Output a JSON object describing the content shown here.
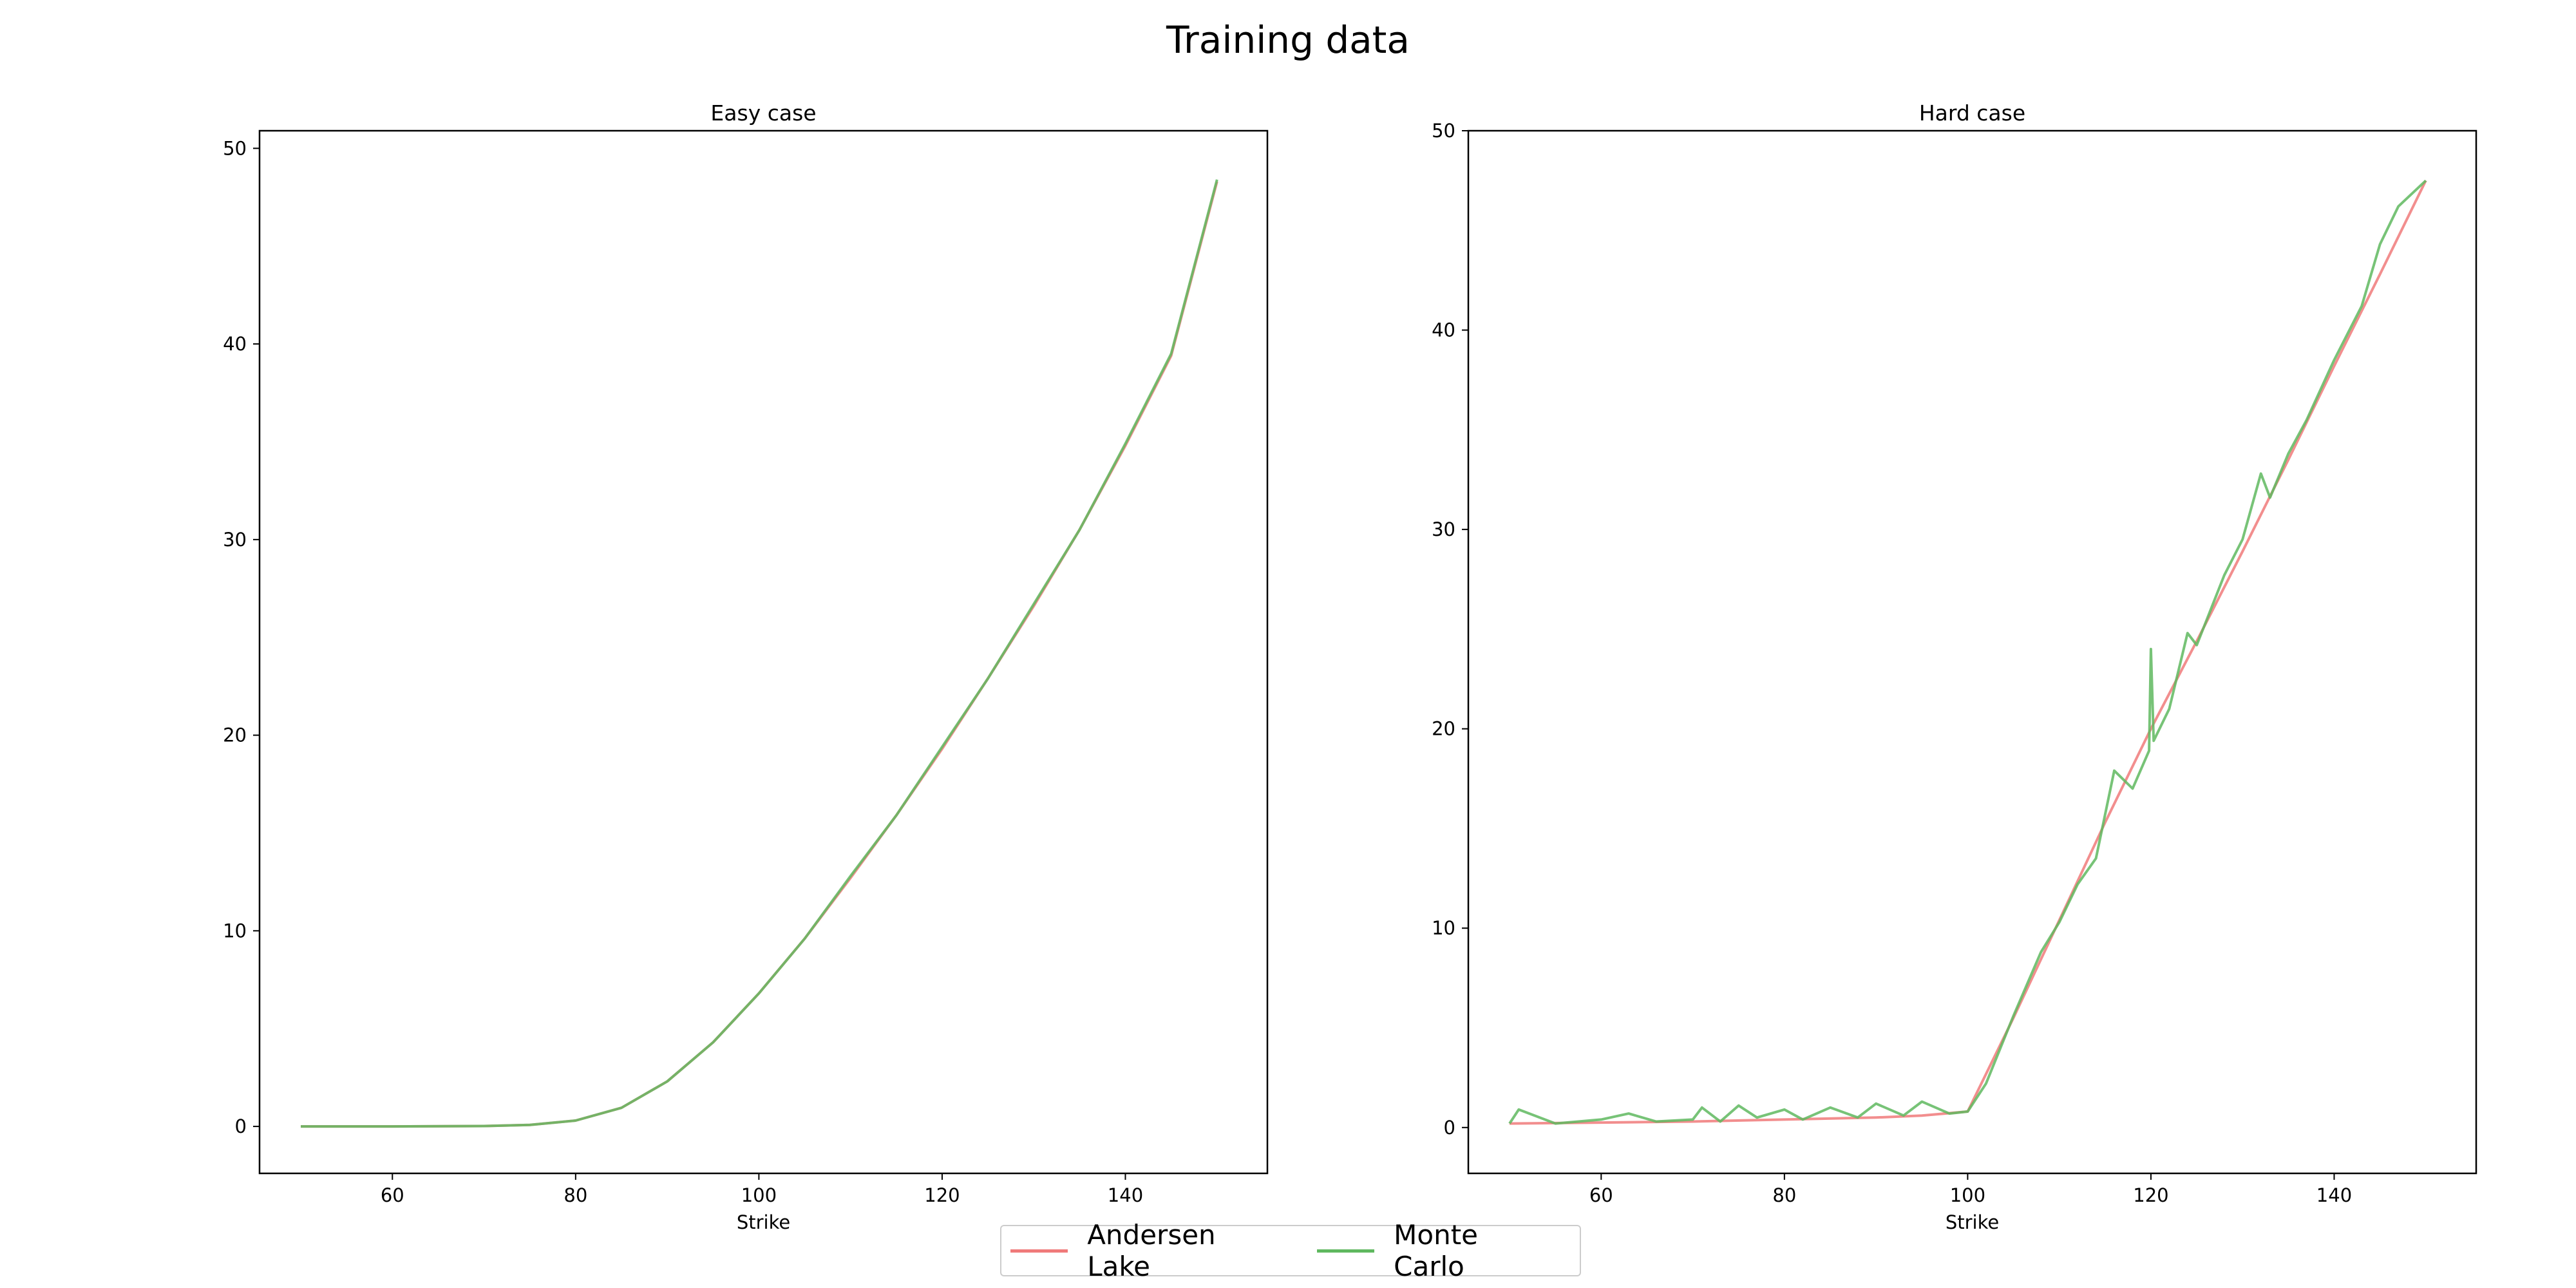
{
  "figure": {
    "title": "Training data"
  },
  "legend": {
    "items": [
      {
        "label": "Andersen Lake",
        "color": "#f07a7a"
      },
      {
        "label": "Monte Carlo",
        "color": "#5fb85f"
      }
    ]
  },
  "chart_data": [
    {
      "type": "line",
      "title": "Easy case",
      "xlabel": "Strike",
      "ylabel": "",
      "xlim": [
        45.5,
        155.5
      ],
      "ylim": [
        -2.4,
        50.9
      ],
      "xticks": [
        60,
        80,
        100,
        120,
        140
      ],
      "yticks": [
        0,
        10,
        20,
        30,
        40,
        50
      ],
      "grid": false,
      "legend_position": "bottom-center",
      "series": [
        {
          "name": "Andersen Lake",
          "color": "#f07a7a",
          "x": [
            50,
            60,
            70,
            75,
            80,
            85,
            90,
            95,
            100,
            105,
            110,
            115,
            120,
            125,
            130,
            135,
            140,
            145,
            150
          ],
          "values": [
            0,
            0,
            0.02,
            0.08,
            0.3,
            0.95,
            2.3,
            4.3,
            6.8,
            9.6,
            12.7,
            15.9,
            19.3,
            22.9,
            26.6,
            30.5,
            34.8,
            39.4,
            48.3
          ]
        },
        {
          "name": "Monte Carlo",
          "color": "#5fb85f",
          "x": [
            50,
            60,
            70,
            75,
            80,
            85,
            90,
            95,
            100,
            105,
            110,
            115,
            120,
            125,
            130,
            135,
            140,
            145,
            150
          ],
          "values": [
            0,
            0,
            0.02,
            0.08,
            0.3,
            0.95,
            2.3,
            4.3,
            6.8,
            9.6,
            12.8,
            15.9,
            19.4,
            22.9,
            26.7,
            30.5,
            34.9,
            39.5,
            48.4
          ]
        }
      ]
    },
    {
      "type": "line",
      "title": "Hard case",
      "xlabel": "Strike",
      "ylabel": "",
      "xlim": [
        45.5,
        155.5
      ],
      "ylim": [
        -2.3,
        50
      ],
      "xticks": [
        60,
        80,
        100,
        120,
        140
      ],
      "yticks": [
        0,
        10,
        20,
        30,
        40,
        50
      ],
      "grid": false,
      "legend_position": "bottom-center",
      "series": [
        {
          "name": "Andersen Lake",
          "color": "#f07a7a",
          "x": [
            50,
            60,
            70,
            80,
            90,
            95,
            100,
            105,
            110,
            115,
            120,
            125,
            130,
            135,
            140,
            145,
            150
          ],
          "values": [
            0.2,
            0.25,
            0.3,
            0.4,
            0.5,
            0.6,
            0.8,
            5.5,
            10.4,
            15.3,
            20.0,
            24.4,
            28.9,
            33.5,
            38.2,
            42.8,
            47.5
          ]
        },
        {
          "name": "Monte Carlo",
          "color": "#5fb85f",
          "x": [
            50,
            51,
            55,
            60,
            63,
            66,
            70,
            71,
            73,
            75,
            77,
            80,
            82,
            85,
            88,
            90,
            93,
            95,
            98,
            100,
            102,
            105,
            108,
            110,
            112,
            114,
            116,
            118,
            119.8,
            120,
            120.3,
            122,
            124,
            125,
            128,
            130,
            132,
            133,
            135,
            137,
            140,
            143,
            145,
            147,
            150
          ],
          "values": [
            0.2,
            0.9,
            0.2,
            0.4,
            0.7,
            0.3,
            0.4,
            1.0,
            0.3,
            1.1,
            0.5,
            0.9,
            0.4,
            1.0,
            0.5,
            1.2,
            0.6,
            1.3,
            0.7,
            0.8,
            2.2,
            5.6,
            8.8,
            10.3,
            12.2,
            13.5,
            17.9,
            17.0,
            18.9,
            24.0,
            19.4,
            21.0,
            24.8,
            24.2,
            27.7,
            29.5,
            32.8,
            31.6,
            33.8,
            35.5,
            38.5,
            41.2,
            44.3,
            46.2,
            47.5
          ]
        }
      ]
    }
  ]
}
